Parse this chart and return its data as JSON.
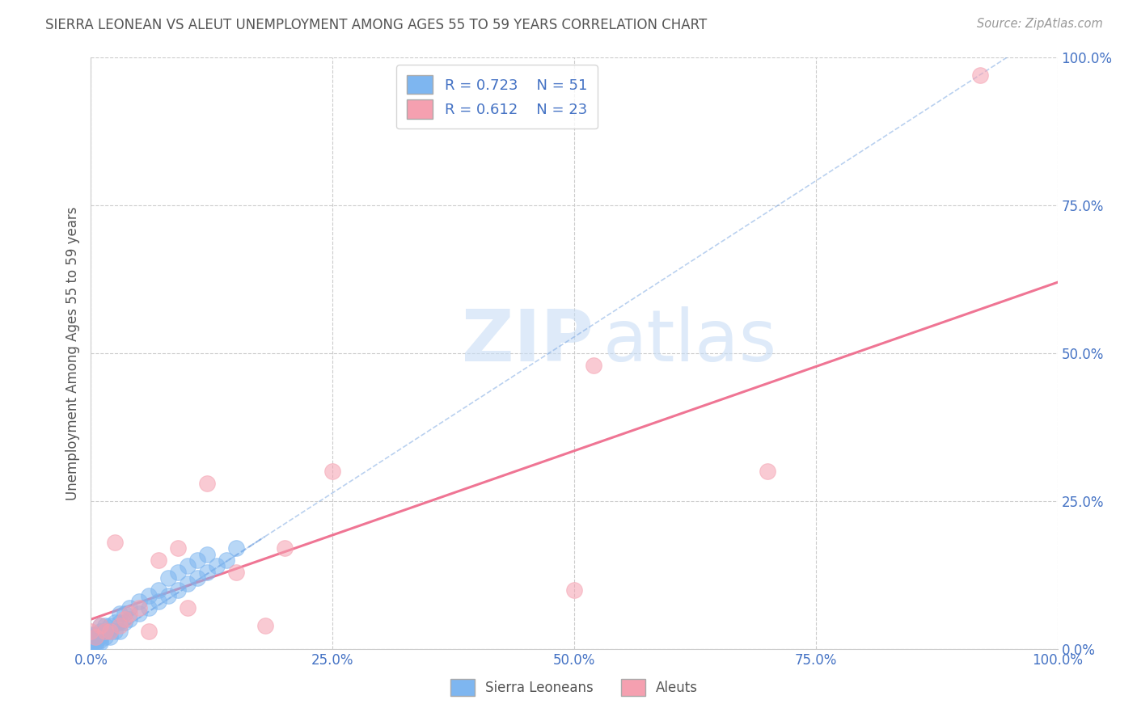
{
  "title": "SIERRA LEONEAN VS ALEUT UNEMPLOYMENT AMONG AGES 55 TO 59 YEARS CORRELATION CHART",
  "source": "Source: ZipAtlas.com",
  "ylabel": "Unemployment Among Ages 55 to 59 years",
  "xlim": [
    0.0,
    1.0
  ],
  "ylim": [
    0.0,
    1.0
  ],
  "xticks": [
    0.0,
    0.25,
    0.5,
    0.75,
    1.0
  ],
  "yticks": [
    0.0,
    0.25,
    0.5,
    0.75,
    1.0
  ],
  "xtick_labels": [
    "0.0%",
    "25.0%",
    "50.0%",
    "75.0%",
    "100.0%"
  ],
  "ytick_labels": [
    "0.0%",
    "25.0%",
    "50.0%",
    "75.0%",
    "100.0%"
  ],
  "background_color": "#ffffff",
  "grid_color": "#cccccc",
  "watermark_zip": "ZIP",
  "watermark_atlas": "atlas",
  "sierra_color": "#7EB6F0",
  "aleut_color": "#F5A0B0",
  "sierra_R": 0.723,
  "sierra_N": 51,
  "aleut_R": 0.612,
  "aleut_N": 23,
  "sierra_line_color": "#6699DD",
  "aleut_line_color": "#EE6688",
  "sierra_x": [
    0.0,
    0.0,
    0.0,
    0.0,
    0.0,
    0.0,
    0.005,
    0.005,
    0.005,
    0.005,
    0.005,
    0.01,
    0.01,
    0.01,
    0.01,
    0.01,
    0.01,
    0.015,
    0.015,
    0.015,
    0.02,
    0.02,
    0.02,
    0.025,
    0.025,
    0.03,
    0.03,
    0.03,
    0.035,
    0.035,
    0.04,
    0.04,
    0.05,
    0.05,
    0.06,
    0.06,
    0.07,
    0.07,
    0.08,
    0.08,
    0.09,
    0.09,
    0.1,
    0.1,
    0.11,
    0.11,
    0.12,
    0.12,
    0.13,
    0.14,
    0.15
  ],
  "sierra_y": [
    0.0,
    0.005,
    0.01,
    0.015,
    0.02,
    0.025,
    0.005,
    0.01,
    0.015,
    0.02,
    0.025,
    0.01,
    0.015,
    0.02,
    0.025,
    0.03,
    0.04,
    0.02,
    0.03,
    0.04,
    0.02,
    0.03,
    0.04,
    0.03,
    0.045,
    0.03,
    0.045,
    0.06,
    0.045,
    0.06,
    0.05,
    0.07,
    0.06,
    0.08,
    0.07,
    0.09,
    0.08,
    0.1,
    0.09,
    0.12,
    0.1,
    0.13,
    0.11,
    0.14,
    0.12,
    0.15,
    0.13,
    0.16,
    0.14,
    0.15,
    0.17
  ],
  "aleut_x": [
    0.0,
    0.005,
    0.01,
    0.015,
    0.02,
    0.025,
    0.03,
    0.035,
    0.04,
    0.05,
    0.06,
    0.07,
    0.09,
    0.1,
    0.12,
    0.15,
    0.18,
    0.2,
    0.25,
    0.5,
    0.52,
    0.7,
    0.92
  ],
  "aleut_y": [
    0.03,
    0.02,
    0.04,
    0.03,
    0.03,
    0.18,
    0.04,
    0.05,
    0.06,
    0.07,
    0.03,
    0.15,
    0.17,
    0.07,
    0.28,
    0.13,
    0.04,
    0.17,
    0.3,
    0.1,
    0.48,
    0.3,
    0.97
  ],
  "sierra_trend_x": [
    0.0,
    0.2
  ],
  "sierra_trend_y": [
    0.0,
    0.2
  ],
  "aleut_trend_x0": 0.0,
  "aleut_trend_x1": 1.0,
  "aleut_trend_y0": 0.05,
  "aleut_trend_y1": 0.62
}
